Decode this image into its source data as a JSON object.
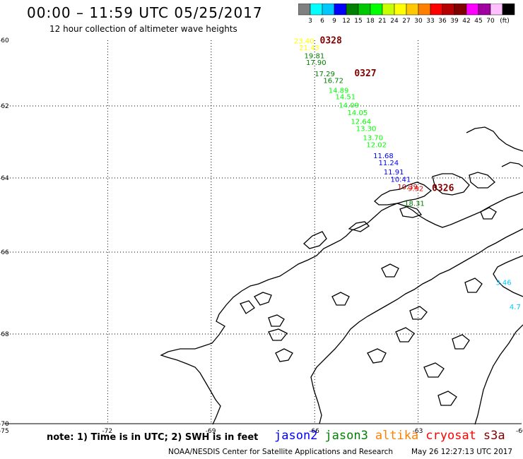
{
  "header": {
    "title": "00:00 – 11:59 UTC 05/25/2017",
    "subtitle": "12 hour collection of altimeter wave heights"
  },
  "color_scale": {
    "colors": [
      "#808080",
      "#00ffff",
      "#00c8ff",
      "#0000ff",
      "#008000",
      "#00c800",
      "#00ff00",
      "#c8ff00",
      "#ffff00",
      "#ffc800",
      "#ff8000",
      "#ff0000",
      "#b40000",
      "#800000",
      "#ff00ff",
      "#a000a0",
      "#ffc0ff",
      "#000000"
    ],
    "labels": [
      "3",
      "6",
      "9",
      "12",
      "15",
      "18",
      "21",
      "24",
      "27",
      "30",
      "33",
      "36",
      "39",
      "42",
      "45",
      "70",
      "(ft)"
    ]
  },
  "axes": {
    "lat_labels": [
      "-60",
      "-62",
      "-64",
      "-66",
      "-68",
      "-70"
    ],
    "lon_labels": [
      "-75",
      "-72",
      "-69",
      "-66",
      "-63",
      "-60"
    ]
  },
  "observations": [
    {
      "value": "23.40",
      "lat": -60.1,
      "lon": -66.6,
      "color": "#ffff00"
    },
    {
      "value": "21.43",
      "lat": -60.3,
      "lon": -66.45,
      "color": "#ffff00"
    },
    {
      "value": "19.81",
      "lat": -60.55,
      "lon": -66.3,
      "color": "#008000"
    },
    {
      "value": "17.90",
      "lat": -60.75,
      "lon": -66.25,
      "color": "#008000"
    },
    {
      "value": "17.29",
      "lat": -61.1,
      "lon": -66.0,
      "color": "#008000"
    },
    {
      "value": "16.72",
      "lat": -61.3,
      "lon": -65.75,
      "color": "#008000"
    },
    {
      "value": "14.89",
      "lat": -61.6,
      "lon": -65.6,
      "color": "#00ff00"
    },
    {
      "value": "14.51",
      "lat": -61.8,
      "lon": -65.4,
      "color": "#00ff00"
    },
    {
      "value": "14.09",
      "lat": -62.05,
      "lon": -65.3,
      "color": "#00ff00"
    },
    {
      "value": "14.05",
      "lat": -62.25,
      "lon": -65.05,
      "color": "#00ff00"
    },
    {
      "value": "12.64",
      "lat": -62.5,
      "lon": -64.95,
      "color": "#00ff00"
    },
    {
      "value": "13.30",
      "lat": -62.7,
      "lon": -64.8,
      "color": "#00ff00"
    },
    {
      "value": "13.70",
      "lat": -62.95,
      "lon": -64.6,
      "color": "#00ff00"
    },
    {
      "value": "12.02",
      "lat": -63.15,
      "lon": -64.5,
      "color": "#00ff00"
    },
    {
      "value": "11.68",
      "lat": -63.45,
      "lon": -64.3,
      "color": "#0000ff"
    },
    {
      "value": "11.24",
      "lat": -63.65,
      "lon": -64.15,
      "color": "#0000ff"
    },
    {
      "value": "11.91",
      "lat": -63.9,
      "lon": -64.0,
      "color": "#0000ff"
    },
    {
      "value": "10.41",
      "lat": -64.1,
      "lon": -63.8,
      "color": "#0000ff"
    },
    {
      "value": "10.39",
      "lat": -64.3,
      "lon": -63.6,
      "color": "#b40000"
    },
    {
      "value": "9.92",
      "lat": -64.35,
      "lon": -63.3,
      "color": "#ff0000"
    },
    {
      "value": "18.31",
      "lat": -64.75,
      "lon": -63.4,
      "color": "#008000"
    },
    {
      "value": "3.46",
      "lat": -66.8,
      "lon": -60.75,
      "color": "#00c8ff"
    },
    {
      "value": "4.7",
      "lat": -67.4,
      "lon": -60.35,
      "color": "#00c8ff"
    }
  ],
  "pass_labels": [
    {
      "text": "0328",
      "lat": -60.1,
      "lon": -65.85,
      "color": "#800000"
    },
    {
      "text": "0327",
      "lat": -61.1,
      "lon": -64.85,
      "color": "#800000"
    },
    {
      "text": "0326",
      "lat": -64.35,
      "lon": -62.6,
      "color": "#800000"
    }
  ],
  "footer": {
    "note": "note: 1) Time is in UTC; 2) SWH is in feet",
    "satellites": [
      {
        "name": "jason2",
        "color": "#0000ff"
      },
      {
        "name": "jason3",
        "color": "#008000"
      },
      {
        "name": "altika",
        "color": "#ff8000"
      },
      {
        "name": "cryosat",
        "color": "#ff0000"
      },
      {
        "name": "s3a",
        "color": "#800000"
      }
    ],
    "credit": "NOAA/NESDIS Center for Satellite Applications and Research",
    "timestamp": "May 26 12:27:13 UTC 2017"
  }
}
